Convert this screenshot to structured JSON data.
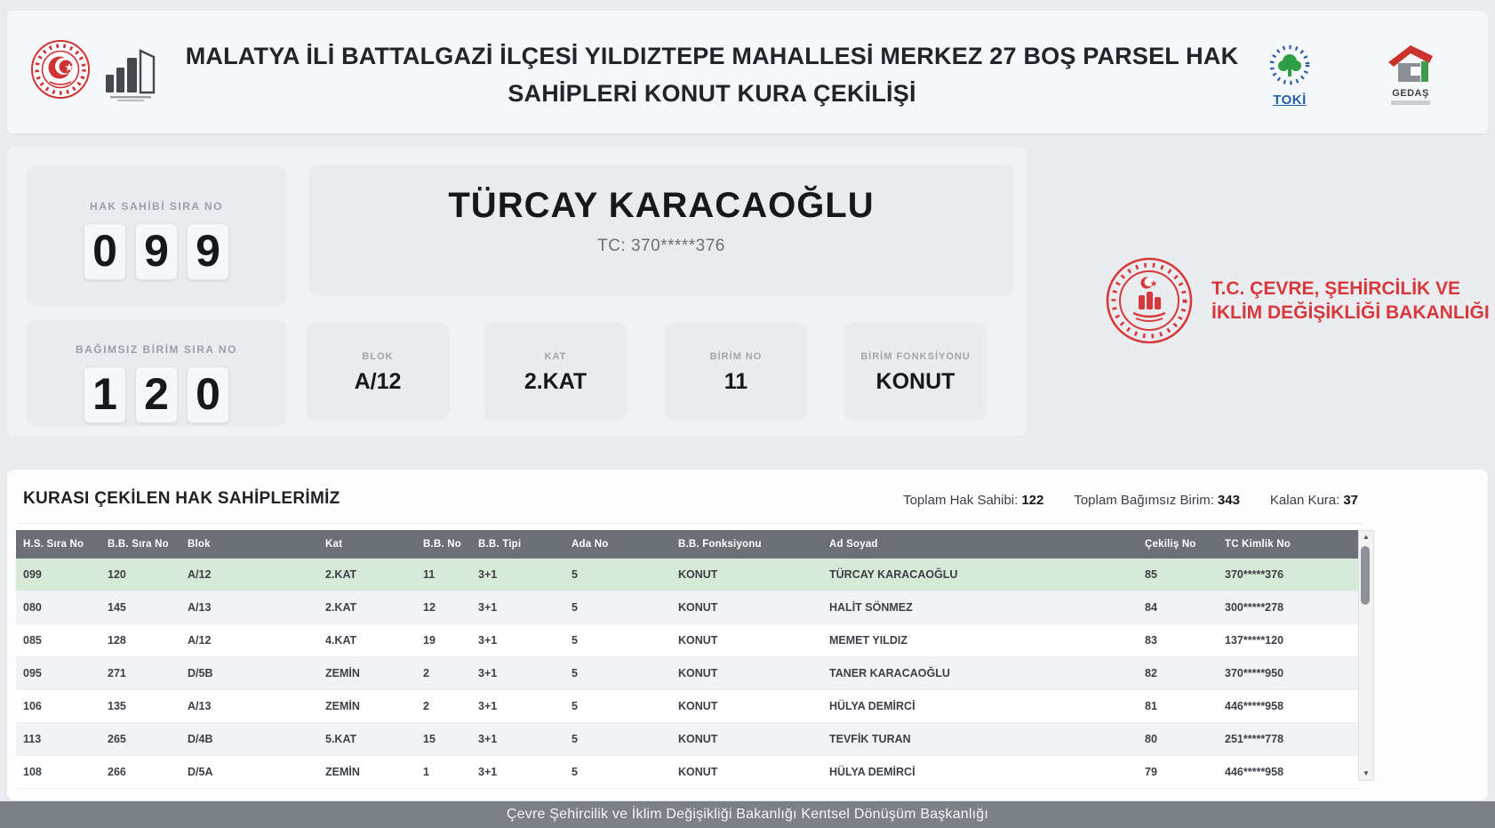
{
  "page": {
    "title_line1": "MALATYA İLİ BATTALGAZİ İLÇESİ YILDIZTEPE MAHALLESİ MERKEZ 27 BOŞ PARSEL HAK",
    "title_line2": "SAHİPLERİ KONUT KURA ÇEKİLİŞİ"
  },
  "logos": {
    "toki": "TOKİ",
    "gedas": "GEDAŞ",
    "ministry_line1": "T.C. ÇEVRE, ŞEHİRCİLİK VE",
    "ministry_line2": "İKLİM DEĞİŞİKLİĞİ BAKANLIĞI"
  },
  "draw": {
    "hak_sahibi": {
      "label": "HAK SAHİBİ SIRA NO",
      "digits": [
        "0",
        "9",
        "9"
      ]
    },
    "bagimsiz_birim": {
      "label": "BAĞIMSIZ BİRİM SIRA NO",
      "digits": [
        "1",
        "2",
        "0"
      ]
    },
    "name": "TÜRCAY KARACAOĞLU",
    "tc": "TC: 370*****376",
    "fields": [
      {
        "label": "BLOK",
        "value": "A/12"
      },
      {
        "label": "KAT",
        "value": "2.KAT"
      },
      {
        "label": "BİRİM NO",
        "value": "11"
      },
      {
        "label": "BİRİM FONKSİYONU",
        "value": "KONUT"
      }
    ]
  },
  "table": {
    "title": "KURASI ÇEKİLEN HAK SAHİPLERİMİZ",
    "stats": [
      {
        "label": "Toplam Hak Sahibi:",
        "value": "122"
      },
      {
        "label": "Toplam Bağımsız Birim:",
        "value": "343"
      },
      {
        "label": "Kalan Kura:",
        "value": "37"
      }
    ],
    "columns": [
      "H.S. Sıra No",
      "B.B. Sıra No",
      "Blok",
      "Kat",
      "B.B. No",
      "B.B. Tipi",
      "Ada No",
      "B.B. Fonksiyonu",
      "Ad Soyad",
      "Çekiliş No",
      "TC Kimlik No"
    ],
    "rows": [
      [
        "099",
        "120",
        "A/12",
        "2.KAT",
        "11",
        "3+1",
        "5",
        "KONUT",
        "TÜRCAY KARACAOĞLU",
        "85",
        "370*****376"
      ],
      [
        "080",
        "145",
        "A/13",
        "2.KAT",
        "12",
        "3+1",
        "5",
        "KONUT",
        "HALİT SÖNMEZ",
        "84",
        "300*****278"
      ],
      [
        "085",
        "128",
        "A/12",
        "4.KAT",
        "19",
        "3+1",
        "5",
        "KONUT",
        "MEMET YILDIZ",
        "83",
        "137*****120"
      ],
      [
        "095",
        "271",
        "D/5B",
        "ZEMİN",
        "2",
        "3+1",
        "5",
        "KONUT",
        "TANER KARACAOĞLU",
        "82",
        "370*****950"
      ],
      [
        "106",
        "135",
        "A/13",
        "ZEMİN",
        "2",
        "3+1",
        "5",
        "KONUT",
        "HÜLYA DEMİRCİ",
        "81",
        "446*****958"
      ],
      [
        "113",
        "265",
        "D/4B",
        "5.KAT",
        "15",
        "3+1",
        "5",
        "KONUT",
        "TEVFİK TURAN",
        "80",
        "251*****778"
      ],
      [
        "108",
        "266",
        "D/5A",
        "ZEMİN",
        "1",
        "3+1",
        "5",
        "KONUT",
        "HÜLYA DEMİRCİ",
        "79",
        "446*****958"
      ]
    ]
  },
  "footer": {
    "text": "Çevre Şehircilik ve İklim Değişikliği Bakanlığı Kentsel Dönüşüm Başkanlığı"
  },
  "colors": {
    "accent_red": "#d6393c",
    "toki_blue": "#1f5fae",
    "table_header": "#6a7076",
    "row_highlight": "#d7e9d7",
    "footer_bar": "#7c8187"
  }
}
